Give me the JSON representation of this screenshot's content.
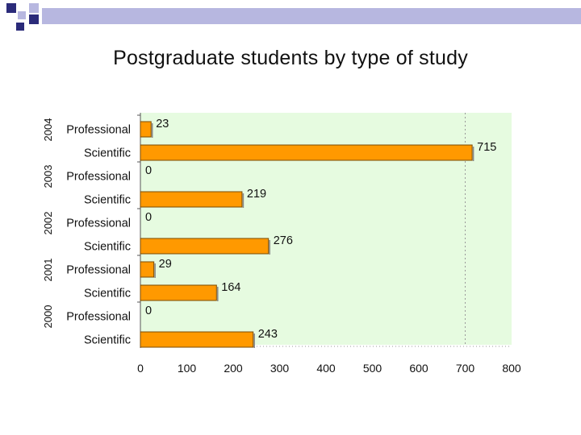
{
  "title": "Postgraduate students by type of study",
  "colors": {
    "bar": "#FF9900",
    "bar_stroke": "#7a4a00",
    "plot_bg": "#E6FBE0",
    "deco_dark": "#2B2B7A",
    "deco_light": "#B7B7E0"
  },
  "chart_data": {
    "type": "bar",
    "orientation": "horizontal",
    "title": "Postgraduate students by type of study",
    "xlim": [
      0,
      800
    ],
    "xticks": [
      0,
      100,
      200,
      300,
      400,
      500,
      600,
      700,
      800
    ],
    "grid": false,
    "legend": "none",
    "groups": [
      {
        "year": "2004",
        "bars": [
          {
            "label": "Professional",
            "value": 23
          },
          {
            "label": "Scientific",
            "value": 715
          }
        ]
      },
      {
        "year": "2003",
        "bars": [
          {
            "label": "Professional",
            "value": 0
          },
          {
            "label": "Scientific",
            "value": 219
          }
        ]
      },
      {
        "year": "2002",
        "bars": [
          {
            "label": "Professional",
            "value": 0
          },
          {
            "label": "Scientific",
            "value": 276
          }
        ]
      },
      {
        "year": "2001",
        "bars": [
          {
            "label": "Professional",
            "value": 29
          },
          {
            "label": "Scientific",
            "value": 164
          }
        ]
      },
      {
        "year": "2000",
        "bars": [
          {
            "label": "Professional",
            "value": 0
          },
          {
            "label": "Scientific",
            "value": 243
          }
        ]
      }
    ]
  }
}
